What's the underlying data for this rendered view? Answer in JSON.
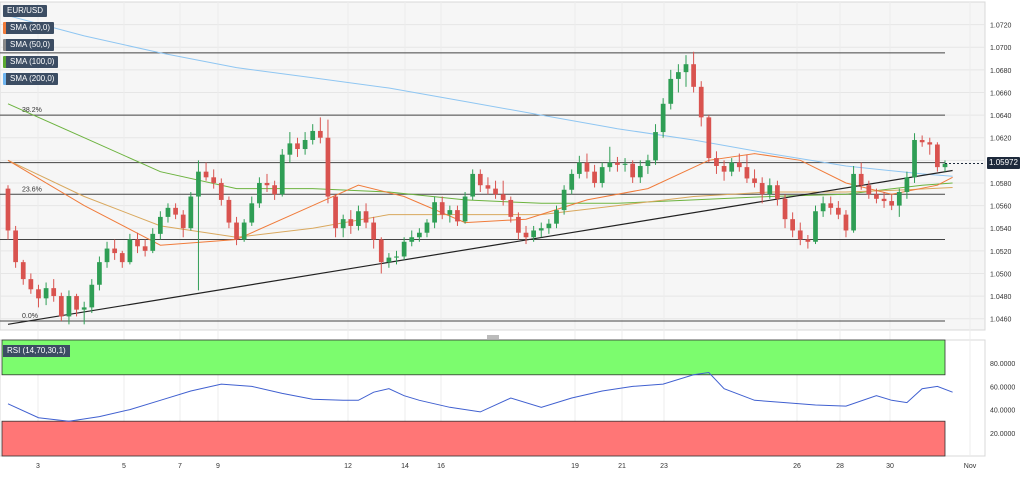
{
  "symbol": "EUR/USD",
  "legend": [
    {
      "label": "SMA (20,0)",
      "color": "#f07b3a"
    },
    {
      "label": "SMA (50,0)",
      "color": "#ffffff"
    },
    {
      "label": "SMA (100,0)",
      "color": "#5aa832"
    },
    {
      "label": "SMA (200,0)",
      "color": "#6fb5f0"
    }
  ],
  "rsi_label": "RSI (14,70,30,1)",
  "current_price": "1.05972",
  "colors": {
    "up": "#2f9e55",
    "down": "#d9534f",
    "rsi_line": "#4060d0",
    "overbought": "#7cfc6e",
    "oversold": "#ff7676"
  },
  "chart_data": {
    "type": "candlestick",
    "ylim": [
      1.045,
      1.074
    ],
    "yticks": [
      "1.0720",
      "1.0700",
      "1.0680",
      "1.0660",
      "1.0640",
      "1.0620",
      "1.0600",
      "1.0580",
      "1.0560",
      "1.0540",
      "1.0520",
      "1.0500",
      "1.0480",
      "1.0460"
    ],
    "xticks": [
      "3",
      "5",
      "7",
      "9",
      "12",
      "14",
      "16",
      "19",
      "21",
      "23",
      "26",
      "28",
      "30",
      "Nov"
    ],
    "fib_levels": [
      {
        "label": "38.2%",
        "value": 1.064
      },
      {
        "label": "23.6%",
        "value": 1.057
      },
      {
        "label": "0.0%",
        "value": 1.0458
      }
    ],
    "horizontal_levels": [
      1.0695,
      1.064,
      1.0598,
      1.057,
      1.053,
      1.0458
    ],
    "trendline": [
      [
        0,
        1.0455
      ],
      [
        124,
        1.0591
      ]
    ],
    "candles": [
      [
        1.0575,
        1.0578,
        1.053,
        1.0538
      ],
      [
        1.0538,
        1.0542,
        1.0505,
        1.051
      ],
      [
        1.051,
        1.0512,
        1.049,
        1.0495
      ],
      [
        1.0495,
        1.05,
        1.0482,
        1.0486
      ],
      [
        1.0486,
        1.049,
        1.047,
        1.0478
      ],
      [
        1.0478,
        1.0492,
        1.0472,
        1.0487
      ],
      [
        1.0487,
        1.0495,
        1.0475,
        1.048
      ],
      [
        1.048,
        1.0483,
        1.0458,
        1.0462
      ],
      [
        1.0462,
        1.0485,
        1.0455,
        1.048
      ],
      [
        1.048,
        1.0482,
        1.0462,
        1.0468
      ],
      [
        1.0468,
        1.0475,
        1.0455,
        1.047
      ],
      [
        1.047,
        1.0495,
        1.0465,
        1.049
      ],
      [
        1.049,
        1.0515,
        1.0485,
        1.051
      ],
      [
        1.051,
        1.0528,
        1.0505,
        1.0522
      ],
      [
        1.0522,
        1.053,
        1.0512,
        1.0518
      ],
      [
        1.0518,
        1.052,
        1.0505,
        1.051
      ],
      [
        1.051,
        1.0535,
        1.0508,
        1.053
      ],
      [
        1.053,
        1.0536,
        1.0518,
        1.0524
      ],
      [
        1.0524,
        1.053,
        1.0515,
        1.052
      ],
      [
        1.052,
        1.054,
        1.0518,
        1.0535
      ],
      [
        1.0535,
        1.0555,
        1.053,
        1.055
      ],
      [
        1.055,
        1.0562,
        1.0545,
        1.0558
      ],
      [
        1.0558,
        1.0562,
        1.0548,
        1.0552
      ],
      [
        1.0552,
        1.0556,
        1.0532,
        1.054
      ],
      [
        1.054,
        1.0572,
        1.0538,
        1.0568
      ],
      [
        1.0568,
        1.06,
        1.0485,
        1.059
      ],
      [
        1.059,
        1.0598,
        1.0582,
        1.0585
      ],
      [
        1.0585,
        1.0592,
        1.0575,
        1.058
      ],
      [
        1.058,
        1.0584,
        1.056,
        1.0565
      ],
      [
        1.0565,
        1.0568,
        1.054,
        1.0545
      ],
      [
        1.0545,
        1.055,
        1.0525,
        1.053
      ],
      [
        1.053,
        1.0548,
        1.0528,
        1.0545
      ],
      [
        1.0545,
        1.0568,
        1.0542,
        1.0562
      ],
      [
        1.0562,
        1.0585,
        1.0558,
        1.058
      ],
      [
        1.058,
        1.0588,
        1.0572,
        1.0578
      ],
      [
        1.0578,
        1.0582,
        1.0565,
        1.057
      ],
      [
        1.057,
        1.061,
        1.0568,
        1.0605
      ],
      [
        1.0605,
        1.0625,
        1.0598,
        1.0615
      ],
      [
        1.0615,
        1.062,
        1.0603,
        1.061
      ],
      [
        1.061,
        1.0625,
        1.0605,
        1.0618
      ],
      [
        1.0618,
        1.0632,
        1.0614,
        1.0626
      ],
      [
        1.0626,
        1.0638,
        1.0615,
        1.062
      ],
      [
        1.062,
        1.0636,
        1.0562,
        1.0568
      ],
      [
        1.0568,
        1.057,
        1.0532,
        1.054
      ],
      [
        1.054,
        1.0552,
        1.0532,
        1.0548
      ],
      [
        1.0548,
        1.0556,
        1.0535,
        1.0542
      ],
      [
        1.0542,
        1.056,
        1.0538,
        1.0555
      ],
      [
        1.0555,
        1.0562,
        1.054,
        1.0545
      ],
      [
        1.0545,
        1.055,
        1.0522,
        1.053
      ],
      [
        1.053,
        1.0532,
        1.05,
        1.051
      ],
      [
        1.051,
        1.0518,
        1.0505,
        1.0514
      ],
      [
        1.0514,
        1.052,
        1.0508,
        1.0515
      ],
      [
        1.0515,
        1.0532,
        1.0512,
        1.0528
      ],
      [
        1.0528,
        1.0538,
        1.0524,
        1.0532
      ],
      [
        1.0532,
        1.054,
        1.0528,
        1.0536
      ],
      [
        1.0536,
        1.0548,
        1.0532,
        1.0545
      ],
      [
        1.0545,
        1.0568,
        1.054,
        1.0563
      ],
      [
        1.0563,
        1.0568,
        1.0548,
        1.0552
      ],
      [
        1.0552,
        1.056,
        1.0545,
        1.0556
      ],
      [
        1.0556,
        1.056,
        1.0542,
        1.0546
      ],
      [
        1.0546,
        1.0572,
        1.0544,
        1.0568
      ],
      [
        1.0568,
        1.0592,
        1.0565,
        1.0588
      ],
      [
        1.0588,
        1.0592,
        1.0572,
        1.0578
      ],
      [
        1.0578,
        1.0585,
        1.057,
        1.0575
      ],
      [
        1.0575,
        1.0582,
        1.0566,
        1.057
      ],
      [
        1.057,
        1.0582,
        1.056,
        1.0565
      ],
      [
        1.0565,
        1.0568,
        1.0545,
        1.055
      ],
      [
        1.055,
        1.0554,
        1.053,
        1.0536
      ],
      [
        1.0536,
        1.0542,
        1.0526,
        1.0532
      ],
      [
        1.0532,
        1.0542,
        1.0528,
        1.0538
      ],
      [
        1.0538,
        1.0545,
        1.0532,
        1.054
      ],
      [
        1.054,
        1.0548,
        1.0535,
        1.0544
      ],
      [
        1.0544,
        1.056,
        1.054,
        1.0556
      ],
      [
        1.0556,
        1.0578,
        1.0552,
        1.0574
      ],
      [
        1.0574,
        1.0592,
        1.057,
        1.0588
      ],
      [
        1.0588,
        1.0604,
        1.0584,
        1.0598
      ],
      [
        1.0598,
        1.0606,
        1.0584,
        1.059
      ],
      [
        1.059,
        1.0596,
        1.0576,
        1.058
      ],
      [
        1.058,
        1.0598,
        1.0576,
        1.0594
      ],
      [
        1.0594,
        1.0612,
        1.059,
        1.0598
      ],
      [
        1.0598,
        1.0603,
        1.059,
        1.0596
      ],
      [
        1.0596,
        1.0602,
        1.059,
        1.0597
      ],
      [
        1.0597,
        1.06,
        1.058,
        1.0585
      ],
      [
        1.0585,
        1.06,
        1.058,
        1.0595
      ],
      [
        1.0595,
        1.0605,
        1.0588,
        1.06
      ],
      [
        1.06,
        1.0632,
        1.0596,
        1.0625
      ],
      [
        1.0625,
        1.0655,
        1.062,
        1.065
      ],
      [
        1.065,
        1.068,
        1.0645,
        1.0672
      ],
      [
        1.0672,
        1.0685,
        1.066,
        1.0678
      ],
      [
        1.0678,
        1.0693,
        1.0665,
        1.0685
      ],
      [
        1.0685,
        1.0696,
        1.066,
        1.0665
      ],
      [
        1.0665,
        1.067,
        1.063,
        1.0638
      ],
      [
        1.0638,
        1.064,
        1.0598,
        1.0602
      ],
      [
        1.0602,
        1.0608,
        1.0588,
        1.0595
      ],
      [
        1.0595,
        1.06,
        1.0582,
        1.059
      ],
      [
        1.059,
        1.0602,
        1.0586,
        1.0598
      ],
      [
        1.0598,
        1.0606,
        1.059,
        1.0594
      ],
      [
        1.0594,
        1.0605,
        1.058,
        1.0584
      ],
      [
        1.0584,
        1.0592,
        1.0576,
        1.058
      ],
      [
        1.058,
        1.0585,
        1.0562,
        1.057
      ],
      [
        1.057,
        1.0584,
        1.0566,
        1.0578
      ],
      [
        1.0578,
        1.0582,
        1.056,
        1.0566
      ],
      [
        1.0566,
        1.057,
        1.054,
        1.0548
      ],
      [
        1.0548,
        1.0554,
        1.0532,
        1.0538
      ],
      [
        1.0538,
        1.0545,
        1.0525,
        1.053
      ],
      [
        1.053,
        1.0534,
        1.0522,
        1.0528
      ],
      [
        1.0528,
        1.056,
        1.0526,
        1.0555
      ],
      [
        1.0555,
        1.0568,
        1.055,
        1.0562
      ],
      [
        1.0562,
        1.0568,
        1.0552,
        1.0558
      ],
      [
        1.0558,
        1.0564,
        1.0548,
        1.0552
      ],
      [
        1.0552,
        1.0556,
        1.0532,
        1.0538
      ],
      [
        1.0538,
        1.0595,
        1.0536,
        1.0588
      ],
      [
        1.0588,
        1.0598,
        1.0574,
        1.0578
      ],
      [
        1.0578,
        1.0582,
        1.0566,
        1.057
      ],
      [
        1.057,
        1.0575,
        1.0562,
        1.0566
      ],
      [
        1.0566,
        1.0572,
        1.0558,
        1.0564
      ],
      [
        1.0564,
        1.057,
        1.0556,
        1.056
      ],
      [
        1.056,
        1.0575,
        1.055,
        1.0572
      ],
      [
        1.0572,
        1.059,
        1.0566,
        1.0585
      ],
      [
        1.0585,
        1.0624,
        1.058,
        1.0618
      ],
      [
        1.0618,
        1.0622,
        1.0612,
        1.0616
      ],
      [
        1.0616,
        1.062,
        1.0605,
        1.0614
      ],
      [
        1.0614,
        1.0616,
        1.059,
        1.0594
      ],
      [
        1.0594,
        1.06,
        1.059,
        1.0597
      ]
    ],
    "sma20": [
      [
        0,
        1.06
      ],
      [
        10,
        1.056
      ],
      [
        20,
        1.0525
      ],
      [
        30,
        1.053
      ],
      [
        40,
        1.056
      ],
      [
        46,
        1.0578
      ],
      [
        52,
        1.0568
      ],
      [
        60,
        1.0545
      ],
      [
        68,
        1.0548
      ],
      [
        76,
        1.0565
      ],
      [
        84,
        1.0575
      ],
      [
        92,
        1.06
      ],
      [
        98,
        1.0606
      ],
      [
        104,
        1.06
      ],
      [
        110,
        1.058
      ],
      [
        116,
        1.057
      ],
      [
        122,
        1.0578
      ],
      [
        124,
        1.0585
      ]
    ],
    "sma100": [
      [
        0,
        1.065
      ],
      [
        10,
        1.062
      ],
      [
        20,
        1.059
      ],
      [
        30,
        1.0575
      ],
      [
        40,
        1.0575
      ],
      [
        50,
        1.0572
      ],
      [
        60,
        1.0565
      ],
      [
        70,
        1.0562
      ],
      [
        80,
        1.0562
      ],
      [
        90,
        1.0565
      ],
      [
        100,
        1.0568
      ],
      [
        110,
        1.057
      ],
      [
        120,
        1.0578
      ],
      [
        124,
        1.058
      ]
    ],
    "sma50": [
      [
        0,
        1.06
      ],
      [
        10,
        1.0568
      ],
      [
        20,
        1.0542
      ],
      [
        30,
        1.0532
      ],
      [
        40,
        1.054
      ],
      [
        50,
        1.0552
      ],
      [
        60,
        1.0552
      ],
      [
        70,
        1.0552
      ],
      [
        80,
        1.056
      ],
      [
        90,
        1.0568
      ],
      [
        100,
        1.0572
      ],
      [
        110,
        1.0572
      ],
      [
        118,
        1.0574
      ],
      [
        124,
        1.0576
      ]
    ],
    "sma200": [
      [
        0,
        1.0728
      ],
      [
        10,
        1.071
      ],
      [
        20,
        1.0695
      ],
      [
        30,
        1.0682
      ],
      [
        40,
        1.0673
      ],
      [
        50,
        1.0664
      ],
      [
        60,
        1.0652
      ],
      [
        70,
        1.064
      ],
      [
        80,
        1.0628
      ],
      [
        90,
        1.0618
      ],
      [
        100,
        1.0606
      ],
      [
        110,
        1.0595
      ],
      [
        120,
        1.0588
      ],
      [
        124,
        1.0586
      ]
    ],
    "rsi": {
      "ylim": [
        0,
        100
      ],
      "yticks": [
        "80.0000",
        "60.0000",
        "40.0000",
        "20.0000"
      ],
      "overbought": 70,
      "oversold": 30,
      "values": [
        [
          0,
          45
        ],
        [
          4,
          33
        ],
        [
          8,
          30
        ],
        [
          12,
          34
        ],
        [
          16,
          40
        ],
        [
          20,
          48
        ],
        [
          24,
          56
        ],
        [
          28,
          62
        ],
        [
          32,
          60
        ],
        [
          36,
          54
        ],
        [
          40,
          49
        ],
        [
          44,
          48
        ],
        [
          46,
          48
        ],
        [
          48,
          55
        ],
        [
          50,
          58
        ],
        [
          52,
          52
        ],
        [
          54,
          48
        ],
        [
          58,
          42
        ],
        [
          62,
          38
        ],
        [
          66,
          50
        ],
        [
          70,
          42
        ],
        [
          74,
          50
        ],
        [
          78,
          56
        ],
        [
          82,
          60
        ],
        [
          86,
          62
        ],
        [
          90,
          70
        ],
        [
          92,
          72
        ],
        [
          94,
          58
        ],
        [
          98,
          48
        ],
        [
          102,
          46
        ],
        [
          106,
          44
        ],
        [
          110,
          43
        ],
        [
          114,
          52
        ],
        [
          116,
          48
        ],
        [
          118,
          46
        ],
        [
          120,
          58
        ],
        [
          122,
          60
        ],
        [
          124,
          55
        ]
      ]
    }
  }
}
